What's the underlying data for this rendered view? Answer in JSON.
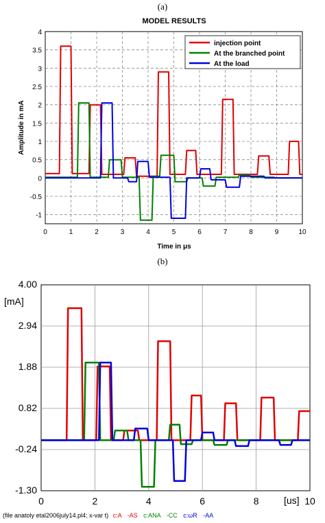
{
  "chart_data": [
    {
      "panel_label": "(a)",
      "type": "line",
      "title": "MODEL RESULTS",
      "xlabel": "Time in μs",
      "ylabel": "Amplitude in mA",
      "xlim": [
        0,
        10
      ],
      "ylim": [
        -1.25,
        4
      ],
      "xticks": [
        0,
        1,
        2,
        3,
        4,
        5,
        6,
        7,
        8,
        9,
        10
      ],
      "yticks": [
        -1,
        -0.5,
        0,
        0.5,
        1,
        1.5,
        2,
        2.5,
        3,
        3.5,
        4
      ],
      "ytick_labels": [
        "-1",
        "-0.5",
        "0",
        "0.5",
        "1",
        "1.5",
        "2",
        "2.5",
        "3",
        "3.5",
        "4"
      ],
      "grid": true,
      "legend_position": "top-right",
      "series": [
        {
          "name": "injection point",
          "color": "#e00000",
          "points": [
            [
              0,
              0.12
            ],
            [
              0.55,
              0.12
            ],
            [
              0.6,
              3.6
            ],
            [
              1.0,
              3.6
            ],
            [
              1.05,
              0.12
            ],
            [
              1.7,
              0.12
            ],
            [
              1.75,
              2.0
            ],
            [
              2.15,
              2.0
            ],
            [
              2.2,
              0.1
            ],
            [
              3.05,
              0.1
            ],
            [
              3.1,
              0.55
            ],
            [
              3.5,
              0.55
            ],
            [
              3.55,
              0.05
            ],
            [
              4.35,
              0.05
            ],
            [
              4.4,
              2.9
            ],
            [
              4.8,
              2.9
            ],
            [
              4.85,
              0.1
            ],
            [
              5.45,
              0.1
            ],
            [
              5.5,
              0.75
            ],
            [
              5.85,
              0.75
            ],
            [
              5.9,
              0.1
            ],
            [
              6.85,
              0.1
            ],
            [
              6.9,
              2.15
            ],
            [
              7.3,
              2.15
            ],
            [
              7.35,
              0.1
            ],
            [
              8.25,
              0.1
            ],
            [
              8.3,
              0.6
            ],
            [
              8.7,
              0.6
            ],
            [
              8.75,
              0.1
            ],
            [
              9.45,
              0.1
            ],
            [
              9.5,
              1.0
            ],
            [
              9.85,
              1.0
            ],
            [
              9.9,
              0.1
            ],
            [
              10,
              0.1
            ]
          ]
        },
        {
          "name": "At the branched point",
          "color": "#008000",
          "points": [
            [
              0,
              0.02
            ],
            [
              1.25,
              0.02
            ],
            [
              1.3,
              2.05
            ],
            [
              1.7,
              2.05
            ],
            [
              1.75,
              0.02
            ],
            [
              2.45,
              0.02
            ],
            [
              2.5,
              0.5
            ],
            [
              2.95,
              0.5
            ],
            [
              3.0,
              0.02
            ],
            [
              3.65,
              0.02
            ],
            [
              3.7,
              -1.15
            ],
            [
              4.15,
              -1.15
            ],
            [
              4.2,
              0.05
            ],
            [
              4.45,
              0.05
            ],
            [
              4.5,
              0.62
            ],
            [
              5.0,
              0.62
            ],
            [
              5.05,
              -0.1
            ],
            [
              5.5,
              -0.1
            ],
            [
              5.55,
              0.0
            ],
            [
              6.1,
              0.0
            ],
            [
              6.15,
              -0.22
            ],
            [
              6.6,
              -0.22
            ],
            [
              6.65,
              0.02
            ],
            [
              7.5,
              0.02
            ],
            [
              7.55,
              0.08
            ],
            [
              7.95,
              0.08
            ],
            [
              8.0,
              0.02
            ],
            [
              8.9,
              0.02
            ],
            [
              8.95,
              0.0
            ],
            [
              10,
              0.0
            ]
          ]
        },
        {
          "name": "At the load",
          "color": "#0000e0",
          "points": [
            [
              0,
              0.0
            ],
            [
              2.15,
              0.0
            ],
            [
              2.2,
              2.05
            ],
            [
              2.6,
              2.05
            ],
            [
              2.65,
              0.0
            ],
            [
              3.2,
              0.0
            ],
            [
              3.25,
              -0.1
            ],
            [
              3.55,
              -0.1
            ],
            [
              3.6,
              0.45
            ],
            [
              4.0,
              0.45
            ],
            [
              4.05,
              0.02
            ],
            [
              4.85,
              0.02
            ],
            [
              4.9,
              -1.1
            ],
            [
              5.45,
              -1.1
            ],
            [
              5.5,
              0.0
            ],
            [
              6.0,
              0.0
            ],
            [
              6.05,
              0.25
            ],
            [
              6.4,
              0.25
            ],
            [
              6.45,
              -0.05
            ],
            [
              7.0,
              -0.05
            ],
            [
              7.05,
              -0.25
            ],
            [
              7.55,
              -0.25
            ],
            [
              7.6,
              0.05
            ],
            [
              8.5,
              0.05
            ],
            [
              8.55,
              0.0
            ],
            [
              10,
              0.0
            ]
          ]
        }
      ]
    },
    {
      "panel_label": "(b)",
      "type": "line",
      "yunit": "[mA]",
      "xunit": "[us]",
      "xlim": [
        0,
        10
      ],
      "ylim": [
        -1.3,
        4.0
      ],
      "xticks": [
        0,
        2,
        4,
        6,
        8,
        10
      ],
      "ytick_labels": [
        "4.00",
        "2.94",
        "1.88",
        "0.82",
        "-0.24",
        "-1.30"
      ],
      "yticks": [
        4.0,
        2.94,
        1.88,
        0.82,
        -0.24,
        -1.3
      ],
      "grid": true,
      "footer": "(file anatoly etal2006july14.pl4; x-var t)",
      "footer_labels": [
        {
          "text": "c:A",
          "color": "#e00000"
        },
        {
          "text": "-AS",
          "color": "#e00000"
        },
        {
          "text": "c:ANA",
          "color": "#008000"
        },
        {
          "text": "-CC",
          "color": "#008000"
        },
        {
          "text": "c:ωR",
          "color": "#0000e0"
        },
        {
          "text": "-AA",
          "color": "#0000e0"
        }
      ],
      "series": [
        {
          "color": "#e00000",
          "points": [
            [
              0,
              0.0
            ],
            [
              0.95,
              0.0
            ],
            [
              1.0,
              3.4
            ],
            [
              1.5,
              3.4
            ],
            [
              1.55,
              0.0
            ],
            [
              2.05,
              0.0
            ],
            [
              2.1,
              1.9
            ],
            [
              2.55,
              1.9
            ],
            [
              2.6,
              0.0
            ],
            [
              3.05,
              0.0
            ],
            [
              3.1,
              0.25
            ],
            [
              3.6,
              0.25
            ],
            [
              3.65,
              0.0
            ],
            [
              4.3,
              0.0
            ],
            [
              4.35,
              2.55
            ],
            [
              4.8,
              2.55
            ],
            [
              4.85,
              0.0
            ],
            [
              5.55,
              0.0
            ],
            [
              5.6,
              1.15
            ],
            [
              5.95,
              1.15
            ],
            [
              6.0,
              0.0
            ],
            [
              6.8,
              0.0
            ],
            [
              6.85,
              0.95
            ],
            [
              7.25,
              0.95
            ],
            [
              7.3,
              0.0
            ],
            [
              8.15,
              0.0
            ],
            [
              8.2,
              1.1
            ],
            [
              8.65,
              1.1
            ],
            [
              8.7,
              0.0
            ],
            [
              9.55,
              0.0
            ],
            [
              9.6,
              0.75
            ],
            [
              10,
              0.75
            ]
          ]
        },
        {
          "color": "#008000",
          "points": [
            [
              0,
              0.0
            ],
            [
              1.6,
              0.0
            ],
            [
              1.65,
              2.0
            ],
            [
              2.15,
              2.0
            ],
            [
              2.2,
              0.0
            ],
            [
              2.7,
              0.0
            ],
            [
              2.75,
              0.25
            ],
            [
              3.2,
              0.25
            ],
            [
              3.25,
              0.0
            ],
            [
              3.7,
              0.0
            ],
            [
              3.75,
              -1.2
            ],
            [
              4.2,
              -1.2
            ],
            [
              4.25,
              0.0
            ],
            [
              4.75,
              0.0
            ],
            [
              4.8,
              0.4
            ],
            [
              5.15,
              0.4
            ],
            [
              5.2,
              -0.1
            ],
            [
              5.6,
              -0.1
            ],
            [
              5.65,
              0.0
            ],
            [
              6.4,
              0.0
            ],
            [
              6.45,
              -0.12
            ],
            [
              6.9,
              -0.12
            ],
            [
              6.95,
              0.0
            ],
            [
              10,
              0.0
            ]
          ]
        },
        {
          "color": "#0000e0",
          "points": [
            [
              0,
              0.0
            ],
            [
              2.15,
              0.0
            ],
            [
              2.2,
              2.0
            ],
            [
              2.6,
              2.0
            ],
            [
              2.65,
              0.0
            ],
            [
              3.45,
              0.0
            ],
            [
              3.5,
              0.3
            ],
            [
              3.95,
              0.3
            ],
            [
              4.0,
              0.0
            ],
            [
              4.9,
              0.0
            ],
            [
              4.95,
              -1.05
            ],
            [
              5.35,
              -1.05
            ],
            [
              5.4,
              0.0
            ],
            [
              5.95,
              0.0
            ],
            [
              6.0,
              0.2
            ],
            [
              6.4,
              0.2
            ],
            [
              6.45,
              0.0
            ],
            [
              7.2,
              0.0
            ],
            [
              7.25,
              -0.15
            ],
            [
              7.7,
              -0.15
            ],
            [
              7.75,
              0.0
            ],
            [
              8.85,
              0.0
            ],
            [
              8.9,
              -0.12
            ],
            [
              9.3,
              -0.12
            ],
            [
              9.35,
              0.0
            ],
            [
              10,
              0.0
            ]
          ]
        }
      ]
    }
  ]
}
